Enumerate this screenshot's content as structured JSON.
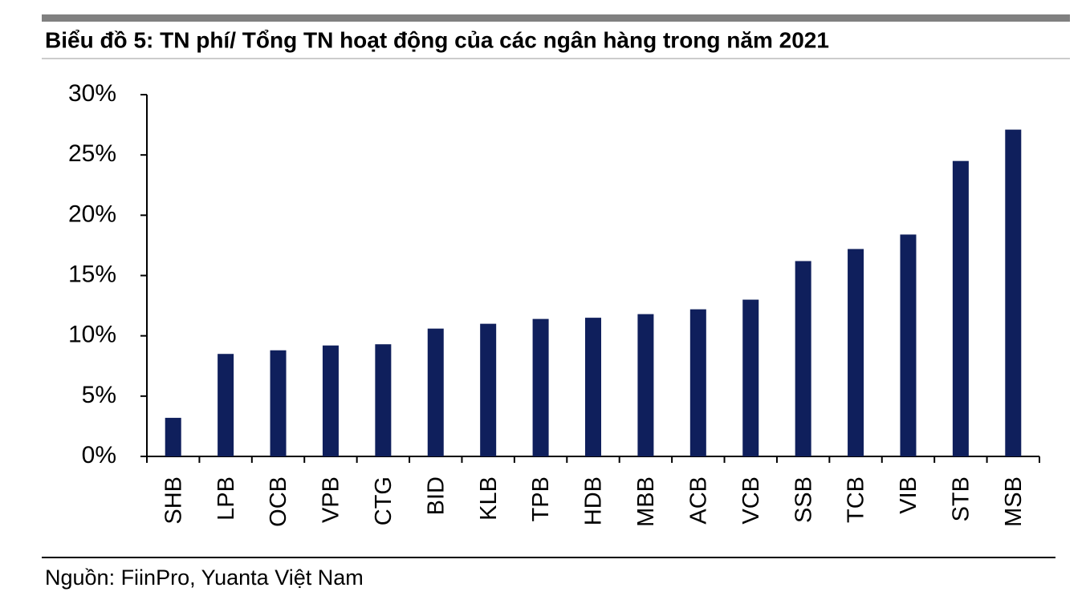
{
  "chart_data": {
    "type": "bar",
    "title": "Biểu đồ 5: TN phí/ Tổng TN hoạt động của các ngân hàng trong năm 2021",
    "source": "Nguồn: FiinPro, Yuanta Việt Nam",
    "categories": [
      "SHB",
      "LPB",
      "OCB",
      "VPB",
      "CTG",
      "BID",
      "KLB",
      "TPB",
      "HDB",
      "MBB",
      "ACB",
      "VCB",
      "SSB",
      "TCB",
      "VIB",
      "STB",
      "MSB"
    ],
    "values": [
      3.2,
      8.5,
      8.8,
      9.2,
      9.3,
      10.6,
      11.0,
      11.4,
      11.5,
      11.8,
      12.2,
      13.0,
      16.2,
      17.2,
      18.4,
      24.5,
      27.1
    ],
    "color": "#0f1f5c",
    "ylim": [
      0,
      30
    ],
    "yticks": [
      {
        "value": 0,
        "label": "0%"
      },
      {
        "value": 5,
        "label": "5%"
      },
      {
        "value": 10,
        "label": "10%"
      },
      {
        "value": 15,
        "label": "15%"
      },
      {
        "value": 20,
        "label": "20%"
      },
      {
        "value": 25,
        "label": "25%"
      },
      {
        "value": 30,
        "label": "30%"
      }
    ],
    "grid": false
  }
}
